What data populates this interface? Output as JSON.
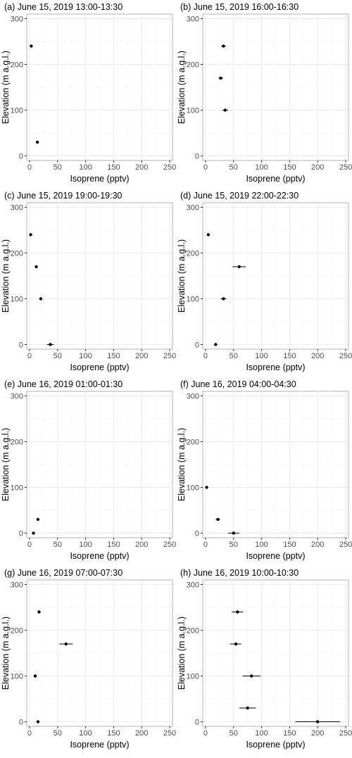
{
  "chart_data": [
    {
      "type": "scatter",
      "title": "(a) June 15, 2019 13:00-13:30",
      "xlabel": "Isoprene (pptv)",
      "ylabel": "Elevation (m a.g.l.)",
      "xlim": [
        -5,
        255
      ],
      "ylim": [
        -10,
        310
      ],
      "xticks": [
        0,
        50,
        100,
        150,
        200,
        250
      ],
      "yticks": [
        0,
        100,
        200,
        300
      ],
      "grid": true,
      "points": [
        {
          "x": 3,
          "y": 240,
          "err": 0
        },
        {
          "x": 14,
          "y": 30,
          "err": 1
        }
      ]
    },
    {
      "type": "scatter",
      "title": "(b) June 15, 2019 16:00-16:30",
      "xlabel": "Isoprene (pptv)",
      "ylabel": "Elevation (m a.g.l.)",
      "xlim": [
        -5,
        255
      ],
      "ylim": [
        -10,
        310
      ],
      "xticks": [
        0,
        50,
        100,
        150,
        200,
        250
      ],
      "yticks": [
        0,
        100,
        200,
        300
      ],
      "grid": true,
      "points": [
        {
          "x": 32,
          "y": 240,
          "err": 4
        },
        {
          "x": 27,
          "y": 170,
          "err": 4
        },
        {
          "x": 35,
          "y": 100,
          "err": 5
        }
      ]
    },
    {
      "type": "scatter",
      "title": "(c) June 15, 2019 19:00-19:30",
      "xlabel": "Isoprene (pptv)",
      "ylabel": "Elevation (m a.g.l.)",
      "xlim": [
        -5,
        255
      ],
      "ylim": [
        -10,
        310
      ],
      "xticks": [
        0,
        50,
        100,
        150,
        200,
        250
      ],
      "yticks": [
        0,
        100,
        200,
        300
      ],
      "grid": true,
      "points": [
        {
          "x": 2,
          "y": 240,
          "err": 0
        },
        {
          "x": 12,
          "y": 170,
          "err": 1
        },
        {
          "x": 20,
          "y": 100,
          "err": 2
        },
        {
          "x": 37,
          "y": 0,
          "err": 6
        }
      ]
    },
    {
      "type": "scatter",
      "title": "(d) June 15, 2019 22:00-22:30",
      "xlabel": "Isoprene (pptv)",
      "ylabel": "Elevation (m a.g.l.)",
      "xlim": [
        -5,
        255
      ],
      "ylim": [
        -10,
        310
      ],
      "xticks": [
        0,
        50,
        100,
        150,
        200,
        250
      ],
      "yticks": [
        0,
        100,
        200,
        300
      ],
      "grid": true,
      "points": [
        {
          "x": 5,
          "y": 240,
          "err": 0
        },
        {
          "x": 60,
          "y": 170,
          "err": 12
        },
        {
          "x": 32,
          "y": 100,
          "err": 5
        },
        {
          "x": 18,
          "y": 0,
          "err": 3
        }
      ]
    },
    {
      "type": "scatter",
      "title": "(e) June 16, 2019 01:00-01:30",
      "xlabel": "Isoprene (pptv)",
      "ylabel": "Elevation (m a.g.l.)",
      "xlim": [
        -5,
        255
      ],
      "ylim": [
        -10,
        310
      ],
      "xticks": [
        0,
        50,
        100,
        150,
        200,
        250
      ],
      "yticks": [
        0,
        100,
        200,
        300
      ],
      "grid": true,
      "points": [
        {
          "x": 15,
          "y": 30,
          "err": 1
        },
        {
          "x": 7,
          "y": 0,
          "err": 0
        }
      ]
    },
    {
      "type": "scatter",
      "title": "(f) June 16, 2019 04:00-04:30",
      "xlabel": "Isoprene (pptv)",
      "ylabel": "Elevation (m a.g.l.)",
      "xlim": [
        -5,
        255
      ],
      "ylim": [
        -10,
        310
      ],
      "xticks": [
        0,
        50,
        100,
        150,
        200,
        250
      ],
      "yticks": [
        0,
        100,
        200,
        300
      ],
      "grid": true,
      "points": [
        {
          "x": 2,
          "y": 100,
          "err": 0
        },
        {
          "x": 22,
          "y": 30,
          "err": 4
        },
        {
          "x": 50,
          "y": 0,
          "err": 10
        }
      ]
    },
    {
      "type": "scatter",
      "title": "(g) June 16, 2019 07:00-07:30",
      "xlabel": "Isoprene (pptv)",
      "ylabel": "Elevation (m a.g.l.)",
      "xlim": [
        -5,
        255
      ],
      "ylim": [
        -10,
        310
      ],
      "xticks": [
        0,
        50,
        100,
        150,
        200,
        250
      ],
      "yticks": [
        0,
        100,
        200,
        300
      ],
      "grid": true,
      "points": [
        {
          "x": 17,
          "y": 240,
          "err": 2
        },
        {
          "x": 65,
          "y": 170,
          "err": 12
        },
        {
          "x": 10,
          "y": 100,
          "err": 1
        },
        {
          "x": 15,
          "y": 0,
          "err": 1
        }
      ]
    },
    {
      "type": "scatter",
      "title": "(h) June 16, 2019 10:00-10:30",
      "xlabel": "Isoprene (pptv)",
      "ylabel": "Elevation (m a.g.l.)",
      "xlim": [
        -5,
        255
      ],
      "ylim": [
        -10,
        310
      ],
      "xticks": [
        0,
        50,
        100,
        150,
        200,
        250
      ],
      "yticks": [
        0,
        100,
        200,
        300
      ],
      "grid": true,
      "points": [
        {
          "x": 57,
          "y": 240,
          "err": 10
        },
        {
          "x": 54,
          "y": 170,
          "err": 10
        },
        {
          "x": 82,
          "y": 100,
          "err": 16
        },
        {
          "x": 75,
          "y": 30,
          "err": 15
        },
        {
          "x": 200,
          "y": 0,
          "err": 40
        }
      ]
    }
  ]
}
